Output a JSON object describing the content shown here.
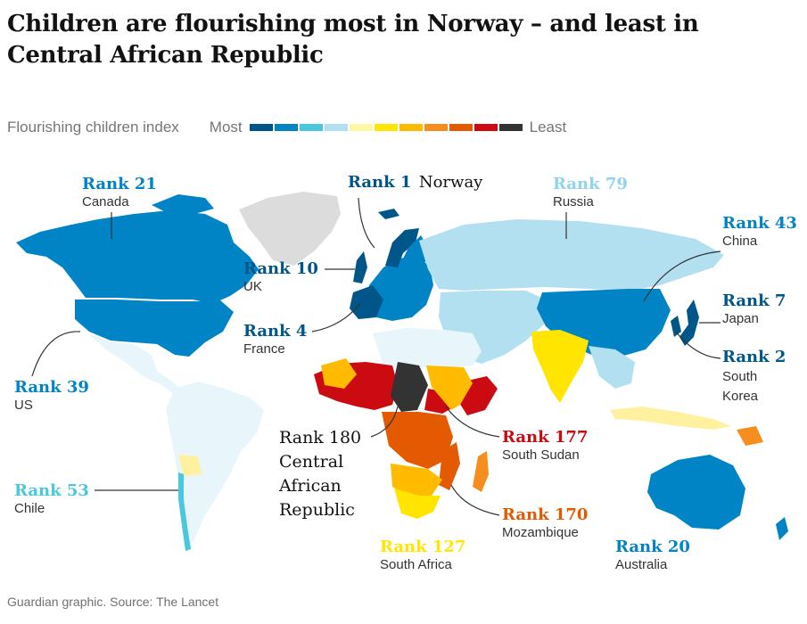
{
  "title": "Children are flourishing most in Norway – and least in Central African Republic",
  "legend": {
    "label": "Flourishing children index",
    "most": "Most",
    "least": "Least",
    "swatches": [
      "#005689",
      "#0084c6",
      "#4bc6df",
      "#b3e0f0",
      "#fff7a6",
      "#ffe500",
      "#ffbb00",
      "#f58e1d",
      "#e35a00",
      "#cc0a11",
      "#333333"
    ]
  },
  "annotations": [
    {
      "rank": "Rank 1",
      "country": "Norway",
      "color": "#005689"
    },
    {
      "rank": "Rank 2",
      "country": "South Korea",
      "color": "#005689"
    },
    {
      "rank": "Rank 4",
      "country": "France",
      "color": "#005689"
    },
    {
      "rank": "Rank 7",
      "country": "Japan",
      "color": "#005689"
    },
    {
      "rank": "Rank 10",
      "country": "UK",
      "color": "#005689"
    },
    {
      "rank": "Rank 20",
      "country": "Australia",
      "color": "#0084c6"
    },
    {
      "rank": "Rank 21",
      "country": "Canada",
      "color": "#0084c6"
    },
    {
      "rank": "Rank 39",
      "country": "US",
      "color": "#0084c6"
    },
    {
      "rank": "Rank 43",
      "country": "China",
      "color": "#0084c6"
    },
    {
      "rank": "Rank 53",
      "country": "Chile",
      "color": "#4bc6df"
    },
    {
      "rank": "Rank 79",
      "country": "Russia",
      "color": "#8fd3ec"
    },
    {
      "rank": "Rank 127",
      "country": "South Africa",
      "color": "#ffe500"
    },
    {
      "rank": "Rank 170",
      "country": "Mozambique",
      "color": "#e35a00"
    },
    {
      "rank": "Rank 177",
      "country": "South Sudan",
      "color": "#cc0a11"
    },
    {
      "rank": "Rank 180",
      "country": "Central African Republic",
      "color": "#333333"
    }
  ],
  "source": "Guardian graphic. Source: The Lancet"
}
